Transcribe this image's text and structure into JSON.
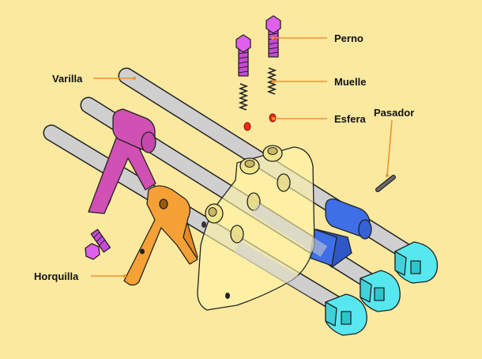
{
  "colors": {
    "background": "#fbe9a0",
    "rod": "#cfcfcf",
    "fork_magenta": "#d150b4",
    "fork_orange": "#f6a136",
    "fork_blue": "#3f6fe6",
    "end_cyan": "#57e8ef",
    "housing": "#fdf4a8",
    "bolt": "#e060ec",
    "ball": "#ee2a1a",
    "leader": "#f2922a"
  },
  "labels": {
    "perno": "Perno",
    "muelle": "Muelle",
    "esfera": "Esfera",
    "pasador": "Pasador",
    "varilla": "Varilla",
    "horquilla": "Horquilla"
  },
  "icons": [
    "bolt-icon",
    "spring-icon",
    "ball-icon",
    "pin-icon",
    "rod-icon",
    "fork-icon"
  ]
}
